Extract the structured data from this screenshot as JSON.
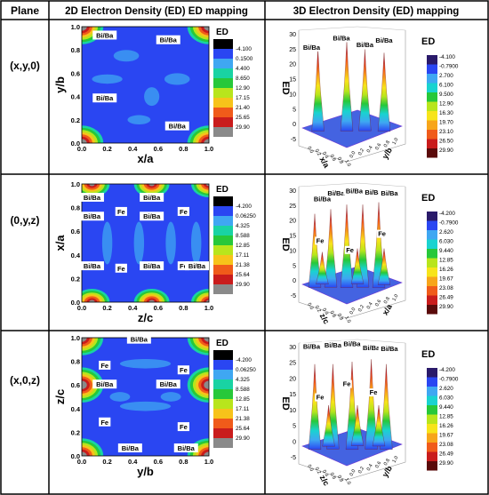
{
  "header": {
    "col_plane": "Plane",
    "col_2d": "2D Electron Density (ED) ED mapping",
    "col_3d": "3D Electron Density (ED) mapping"
  },
  "rows": [
    {
      "plane": "(x,y,0)",
      "map2d": {
        "xlabel": "x/a",
        "ylabel": "y/b",
        "xticks": [
          "0.0",
          "0.2",
          "0.4",
          "0.6",
          "0.8",
          "1.0"
        ],
        "yticks": [
          "0.0",
          "0.2",
          "0.4",
          "0.6",
          "0.8",
          "1.0"
        ],
        "atoms": [
          {
            "label": "Bi/Ba",
            "x": 0.18,
            "y": 0.92
          },
          {
            "label": "Bi/Ba",
            "x": 0.68,
            "y": 0.88
          },
          {
            "label": "Bi/Ba",
            "x": 0.18,
            "y": 0.38
          },
          {
            "label": "Bi/Ba",
            "x": 0.75,
            "y": 0.14
          }
        ],
        "legend_title": "ED",
        "legend_values": [
          "-4.100",
          "0.1500",
          "4.400",
          "8.650",
          "12.90",
          "17.15",
          "21.40",
          "25.65",
          "29.90"
        ]
      },
      "map3d": {
        "zlabel": "ED",
        "zticks": [
          "-5",
          "0",
          "5",
          "10",
          "15",
          "20",
          "25",
          "30"
        ],
        "xaxis": "x/a",
        "yaxis": "y/b",
        "atoms": [
          "Bi/Ba",
          "Bi/Ba",
          "Bi/Ba",
          "Bi/Ba"
        ],
        "legend_title": "ED",
        "legend_values": [
          "-4.100",
          "-0.7900",
          "2.700",
          "6.100",
          "9.500",
          "12.90",
          "16.30",
          "19.70",
          "23.10",
          "26.50",
          "29.90"
        ]
      }
    },
    {
      "plane": "(0,y,z)",
      "map2d": {
        "xlabel": "z/c",
        "ylabel": "x/a",
        "xticks": [
          "0.0",
          "0.2",
          "0.4",
          "0.6",
          "0.8",
          "1.0"
        ],
        "yticks": [
          "0.0",
          "0.2",
          "0.4",
          "0.6",
          "0.8",
          "1.0"
        ],
        "atoms": [
          {
            "label": "Bi/Ba",
            "x": 0.08,
            "y": 0.88
          },
          {
            "label": "Bi/Ba",
            "x": 0.55,
            "y": 0.88
          },
          {
            "label": "Bi/Ba",
            "x": 0.08,
            "y": 0.72
          },
          {
            "label": "Fe",
            "x": 0.31,
            "y": 0.76
          },
          {
            "label": "Bi/Ba",
            "x": 0.55,
            "y": 0.72
          },
          {
            "label": "Fe",
            "x": 0.8,
            "y": 0.76
          },
          {
            "label": "Bi/Ba",
            "x": 0.08,
            "y": 0.3
          },
          {
            "label": "Fe",
            "x": 0.31,
            "y": 0.28
          },
          {
            "label": "Bi/Ba",
            "x": 0.55,
            "y": 0.3
          },
          {
            "label": "Fe",
            "x": 0.8,
            "y": 0.3
          },
          {
            "label": "Bi/Ba",
            "x": 1.0,
            "y": 0.3
          }
        ],
        "legend_title": "ED",
        "legend_values": [
          "-4.200",
          "0.06250",
          "4.325",
          "8.588",
          "12.85",
          "17.11",
          "21.38",
          "25.64",
          "29.90"
        ]
      },
      "map3d": {
        "zlabel": "ED",
        "zticks": [
          "-5",
          "0",
          "5",
          "10",
          "15",
          "20",
          "25",
          "30"
        ],
        "xaxis": "z/c",
        "yaxis": "x/a",
        "atoms": [
          "Bi/Ba",
          "Bi/Ba",
          "Bi/Ba",
          "Bi/Ba",
          "Bi/Ba",
          "Fe",
          "Fe",
          "Fe"
        ],
        "legend_title": "ED",
        "legend_values": [
          "-4.200",
          "-0.7900",
          "2.620",
          "6.030",
          "9.440",
          "12.85",
          "16.26",
          "19.67",
          "23.08",
          "26.49",
          "29.90"
        ]
      }
    },
    {
      "plane": "(x,0,z)",
      "map2d": {
        "xlabel": "y/b",
        "ylabel": "z/c",
        "xticks": [
          "0.0",
          "0.2",
          "0.4",
          "0.6",
          "0.8",
          "1.0"
        ],
        "yticks": [
          "0.0",
          "0.2",
          "0.4",
          "0.6",
          "0.8",
          "1.0"
        ],
        "atoms": [
          {
            "label": "Bi/Ba",
            "x": 0.45,
            "y": 0.98
          },
          {
            "label": "Fe",
            "x": 0.18,
            "y": 0.76
          },
          {
            "label": "Fe",
            "x": 0.8,
            "y": 0.72
          },
          {
            "label": "Bi/Ba",
            "x": 0.18,
            "y": 0.6
          },
          {
            "label": "Bi/Ba",
            "x": 0.68,
            "y": 0.6
          },
          {
            "label": "Fe",
            "x": 0.18,
            "y": 0.28
          },
          {
            "label": "Fe",
            "x": 0.8,
            "y": 0.24
          },
          {
            "label": "Bi/Ba",
            "x": 0.38,
            "y": 0.06
          },
          {
            "label": "Bi/Ba",
            "x": 0.82,
            "y": 0.06
          }
        ],
        "legend_title": "ED",
        "legend_values": [
          "-4.200",
          "0.06250",
          "4.325",
          "8.588",
          "12.85",
          "17.11",
          "21.38",
          "25.64",
          "29.90"
        ]
      },
      "map3d": {
        "zlabel": "ED",
        "zticks": [
          "-5",
          "0",
          "5",
          "10",
          "15",
          "20",
          "25",
          "30"
        ],
        "xaxis": "z/c",
        "yaxis": "y/b",
        "atoms": [
          "Bi/Ba",
          "Bi/Ba",
          "Bi/Ba",
          "Bi/Ba",
          "Bi/Ba",
          "Fe",
          "Fe",
          "Fe"
        ],
        "legend_title": "ED",
        "legend_values": [
          "-4.200",
          "-0.7900",
          "2.620",
          "6.030",
          "9.440",
          "12.85",
          "16.26",
          "19.67",
          "23.08",
          "26.49",
          "29.90"
        ]
      }
    }
  ],
  "colors": {
    "bg_map": "#2a46f2",
    "legend_scale_2d": [
      "#000000",
      "#2a46f2",
      "#3fa7f2",
      "#19d3a3",
      "#27c83a",
      "#b8e51c",
      "#f7c31a",
      "#f05b1a",
      "#c91c1c",
      "#8a8a8a"
    ],
    "legend_scale_3d": [
      "#2a1a6a",
      "#2a46f2",
      "#3fa7f2",
      "#19d3d0",
      "#27c83a",
      "#b8e51c",
      "#f7e41a",
      "#f7a51a",
      "#f05b1a",
      "#c91c1c",
      "#5a0a0a"
    ],
    "border": "#000000"
  }
}
